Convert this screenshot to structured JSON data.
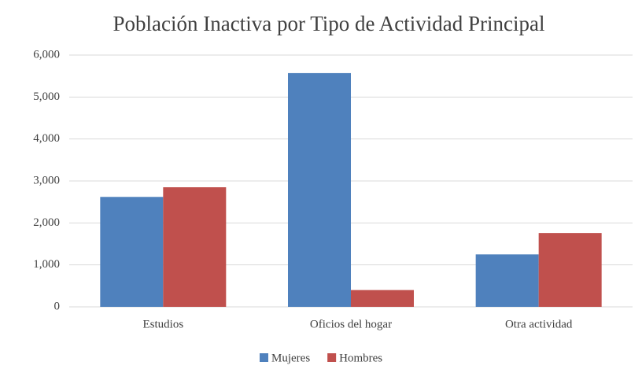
{
  "chart_data": {
    "type": "bar",
    "title": "Población Inactiva por Tipo de Actividad Principal",
    "categories": [
      "Estudios",
      "Oficios del hogar",
      "Otra actividad"
    ],
    "series": [
      {
        "name": "Mujeres",
        "color": "#4f81bd",
        "values": [
          2620,
          5570,
          1250
        ]
      },
      {
        "name": "Hombres",
        "color": "#c0504d",
        "values": [
          2850,
          400,
          1760
        ]
      }
    ],
    "ylim": [
      0,
      6000
    ],
    "yticks": [
      0,
      {
        "value": 1000,
        "label": "1,000"
      },
      {
        "value": 2000,
        "label": "2,000"
      },
      {
        "value": 3000,
        "label": "3,000"
      },
      {
        "value": 4000,
        "label": "4,000"
      },
      {
        "value": 5000,
        "label": "5,000"
      },
      {
        "value": 6000,
        "label": "6,000"
      }
    ],
    "grid": true,
    "legend": "bottom"
  }
}
